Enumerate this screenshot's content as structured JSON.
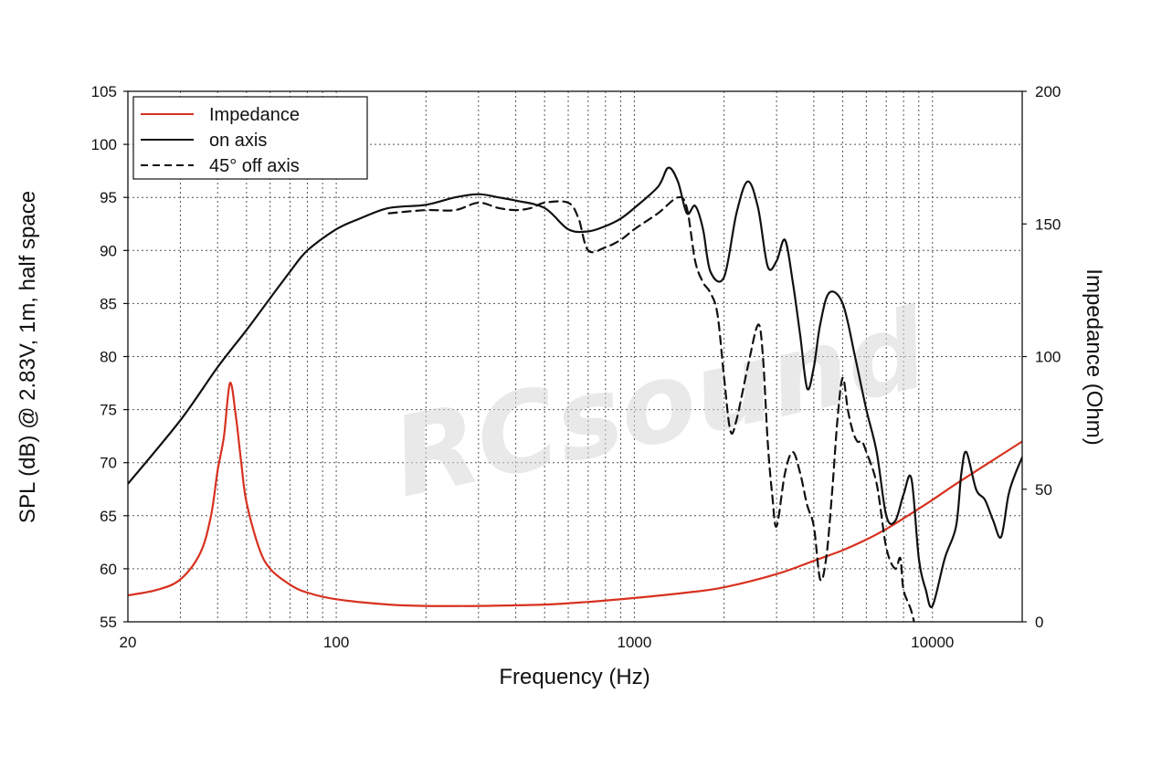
{
  "watermark": "RCsound",
  "chart_data": {
    "type": "line",
    "title": "",
    "xlabel": "Frequency (Hz)",
    "ylabel": "SPL (dB) @ 2.83V, 1m, half space",
    "y2label": "Impedance (Ohm)",
    "xscale": "log",
    "xlim": [
      20,
      20000
    ],
    "ylim": [
      55,
      105
    ],
    "y2lim": [
      0,
      200
    ],
    "grid": true,
    "legend_position": "top-left",
    "x_ticks": [
      {
        "value": 20,
        "label": "20"
      },
      {
        "value": 100,
        "label": "100"
      },
      {
        "value": 1000,
        "label": "1000"
      },
      {
        "value": 10000,
        "label": "10000"
      }
    ],
    "y_ticks": [
      "55",
      "60",
      "65",
      "70",
      "75",
      "80",
      "85",
      "90",
      "95",
      "100",
      "105"
    ],
    "y2_ticks": [
      "0",
      "50",
      "100",
      "150",
      "200"
    ],
    "series": [
      {
        "name": "Impedance",
        "axis": "right",
        "color": "#d7311f",
        "style": "solid",
        "x": [
          20,
          25,
          30,
          35,
          38,
          40,
          42,
          44,
          46,
          48,
          50,
          55,
          60,
          70,
          80,
          100,
          150,
          200,
          300,
          500,
          700,
          1000,
          1500,
          2000,
          3000,
          4000,
          5000,
          6000,
          7000,
          8000,
          10000,
          12000,
          15000,
          20000
        ],
        "y": [
          10,
          12,
          16,
          26,
          40,
          57,
          70,
          90,
          78,
          60,
          45,
          28,
          20,
          14,
          11,
          8.5,
          6.5,
          6,
          6,
          6.5,
          7.5,
          9,
          11,
          13,
          18,
          23,
          27,
          31,
          35,
          39,
          46,
          52,
          59,
          68
        ]
      },
      {
        "name": "on axis",
        "axis": "left",
        "color": "#111111",
        "style": "solid",
        "x": [
          20,
          30,
          40,
          50,
          60,
          70,
          80,
          100,
          120,
          150,
          200,
          250,
          300,
          350,
          400,
          500,
          600,
          700,
          800,
          900,
          1000,
          1200,
          1300,
          1400,
          1500,
          1600,
          1700,
          1800,
          2000,
          2200,
          2400,
          2600,
          2800,
          3000,
          3200,
          3400,
          3600,
          3800,
          4000,
          4200,
          4500,
          5000,
          5500,
          6000,
          6500,
          7000,
          7500,
          8000,
          8500,
          9000,
          9500,
          10000,
          11000,
          12000,
          12500,
          13000,
          14000,
          15000,
          16000,
          17000,
          18000,
          19000,
          20000
        ],
        "y": [
          68,
          74,
          79,
          82.5,
          85.5,
          88,
          90,
          92,
          93,
          94,
          94.3,
          95,
          95.3,
          95,
          94.7,
          94,
          92,
          91.8,
          92.3,
          93,
          94,
          96,
          97.8,
          96.5,
          93.5,
          94.2,
          92,
          88,
          87.5,
          93.5,
          96.5,
          94,
          88.5,
          89,
          91,
          87,
          82,
          77,
          79,
          83,
          86,
          85,
          80,
          75,
          71,
          65,
          64.5,
          67,
          68.5,
          61,
          58,
          56.5,
          61,
          64,
          69,
          71,
          67.5,
          66.5,
          64.5,
          63,
          67,
          69,
          70.5
        ]
      },
      {
        "name": "45° off axis",
        "axis": "left",
        "color": "#111111",
        "style": "dashed",
        "x": [
          150,
          200,
          250,
          300,
          350,
          400,
          450,
          500,
          600,
          650,
          700,
          800,
          900,
          1000,
          1200,
          1400,
          1500,
          1600,
          1700,
          1800,
          1900,
          2000,
          2100,
          2200,
          2400,
          2600,
          2700,
          2800,
          2900,
          3000,
          3200,
          3400,
          3600,
          3800,
          4000,
          4200,
          4400,
          4600,
          4800,
          5000,
          5200,
          5400,
          5600,
          5800,
          6000,
          6500,
          7000,
          7500,
          7800,
          8000,
          8500,
          9000
        ],
        "y": [
          93.5,
          93.8,
          93.8,
          94.5,
          94,
          93.8,
          94,
          94.5,
          94.5,
          93,
          90,
          90.3,
          91,
          92,
          93.5,
          95,
          94,
          89,
          87,
          86,
          84,
          78,
          73,
          74,
          79,
          83,
          80,
          72,
          67,
          64,
          69,
          71,
          69,
          66,
          64,
          59,
          61,
          67,
          74,
          78,
          75,
          73,
          72,
          72,
          71,
          68,
          62,
          60,
          61,
          58,
          56,
          53
        ]
      }
    ]
  }
}
